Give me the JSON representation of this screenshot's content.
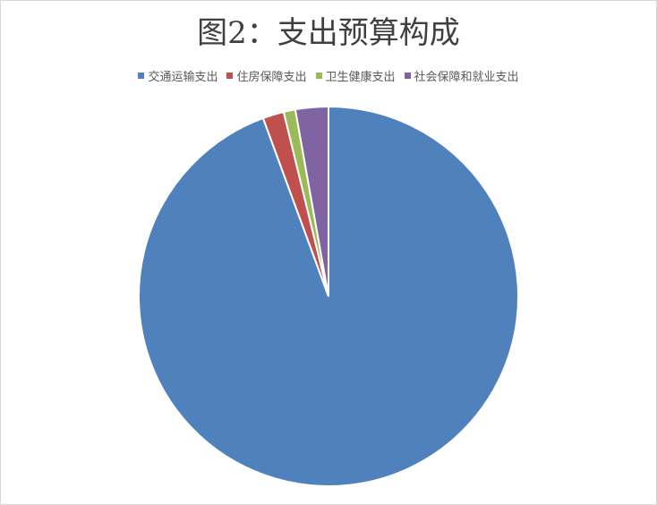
{
  "chart_data": {
    "type": "pie",
    "title": "图2：支出预算构成",
    "categories": [
      "交通运输支出",
      "住房保障支出",
      "卫生健康支出",
      "社会保障和就业支出"
    ],
    "values": [
      94.4,
      1.8,
      1.0,
      2.8
    ],
    "unit": "%",
    "colors": [
      "#4f81bd",
      "#c0504d",
      "#9bbb59",
      "#8064a2"
    ],
    "legend": "top",
    "start_angle": "12 o'clock",
    "direction": "clockwise"
  }
}
